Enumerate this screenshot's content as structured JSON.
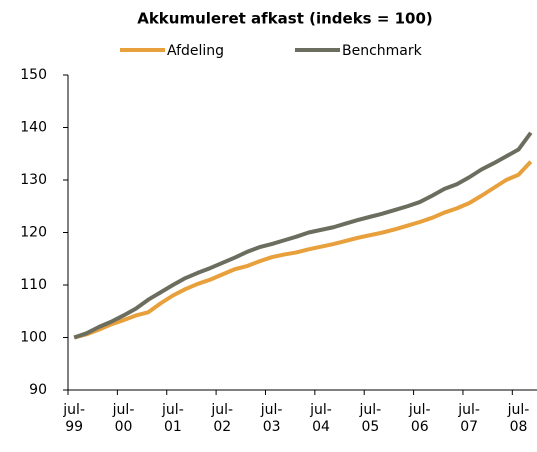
{
  "chart_data": {
    "type": "line",
    "title": "Akkumuleret afkast (indeks = 100)",
    "categories": [
      "jul-99",
      null,
      null,
      null,
      "jul-00",
      null,
      null,
      null,
      "jul-01",
      null,
      null,
      null,
      "jul-02",
      null,
      null,
      null,
      "jul-03",
      null,
      null,
      null,
      "jul-04",
      null,
      null,
      null,
      "jul-05",
      null,
      null,
      null,
      "jul-06",
      null,
      null,
      null,
      "jul-07",
      null,
      null,
      null,
      "jul-08",
      null
    ],
    "series": [
      {
        "name": "Afdeling",
        "color": "#e8a03c",
        "values": [
          100,
          100.6,
          101.5,
          102.5,
          103.3,
          104.2,
          104.8,
          106.5,
          108,
          109.2,
          110.2,
          111,
          112,
          113,
          113.6,
          114.5,
          115.3,
          115.8,
          116.2,
          116.8,
          117.3,
          117.8,
          118.4,
          119,
          119.5,
          120,
          120.6,
          121.3,
          122,
          122.8,
          123.8,
          124.6,
          125.6,
          127,
          128.5,
          130,
          131,
          133.5
        ]
      },
      {
        "name": "Benchmark",
        "color": "#6b6e5f",
        "values": [
          100,
          100.8,
          102,
          103,
          104.2,
          105.5,
          107.2,
          108.6,
          110,
          111.3,
          112.3,
          113.2,
          114.2,
          115.2,
          116.3,
          117.2,
          117.8,
          118.5,
          119.2,
          120,
          120.5,
          121,
          121.7,
          122.4,
          123,
          123.6,
          124.3,
          125,
          125.8,
          127,
          128.3,
          129.2,
          130.5,
          132,
          133.2,
          134.5,
          135.8,
          139
        ]
      }
    ],
    "ylim": [
      90,
      150
    ],
    "yticks": [
      90,
      100,
      110,
      120,
      130,
      140,
      150
    ],
    "legend": "top"
  }
}
